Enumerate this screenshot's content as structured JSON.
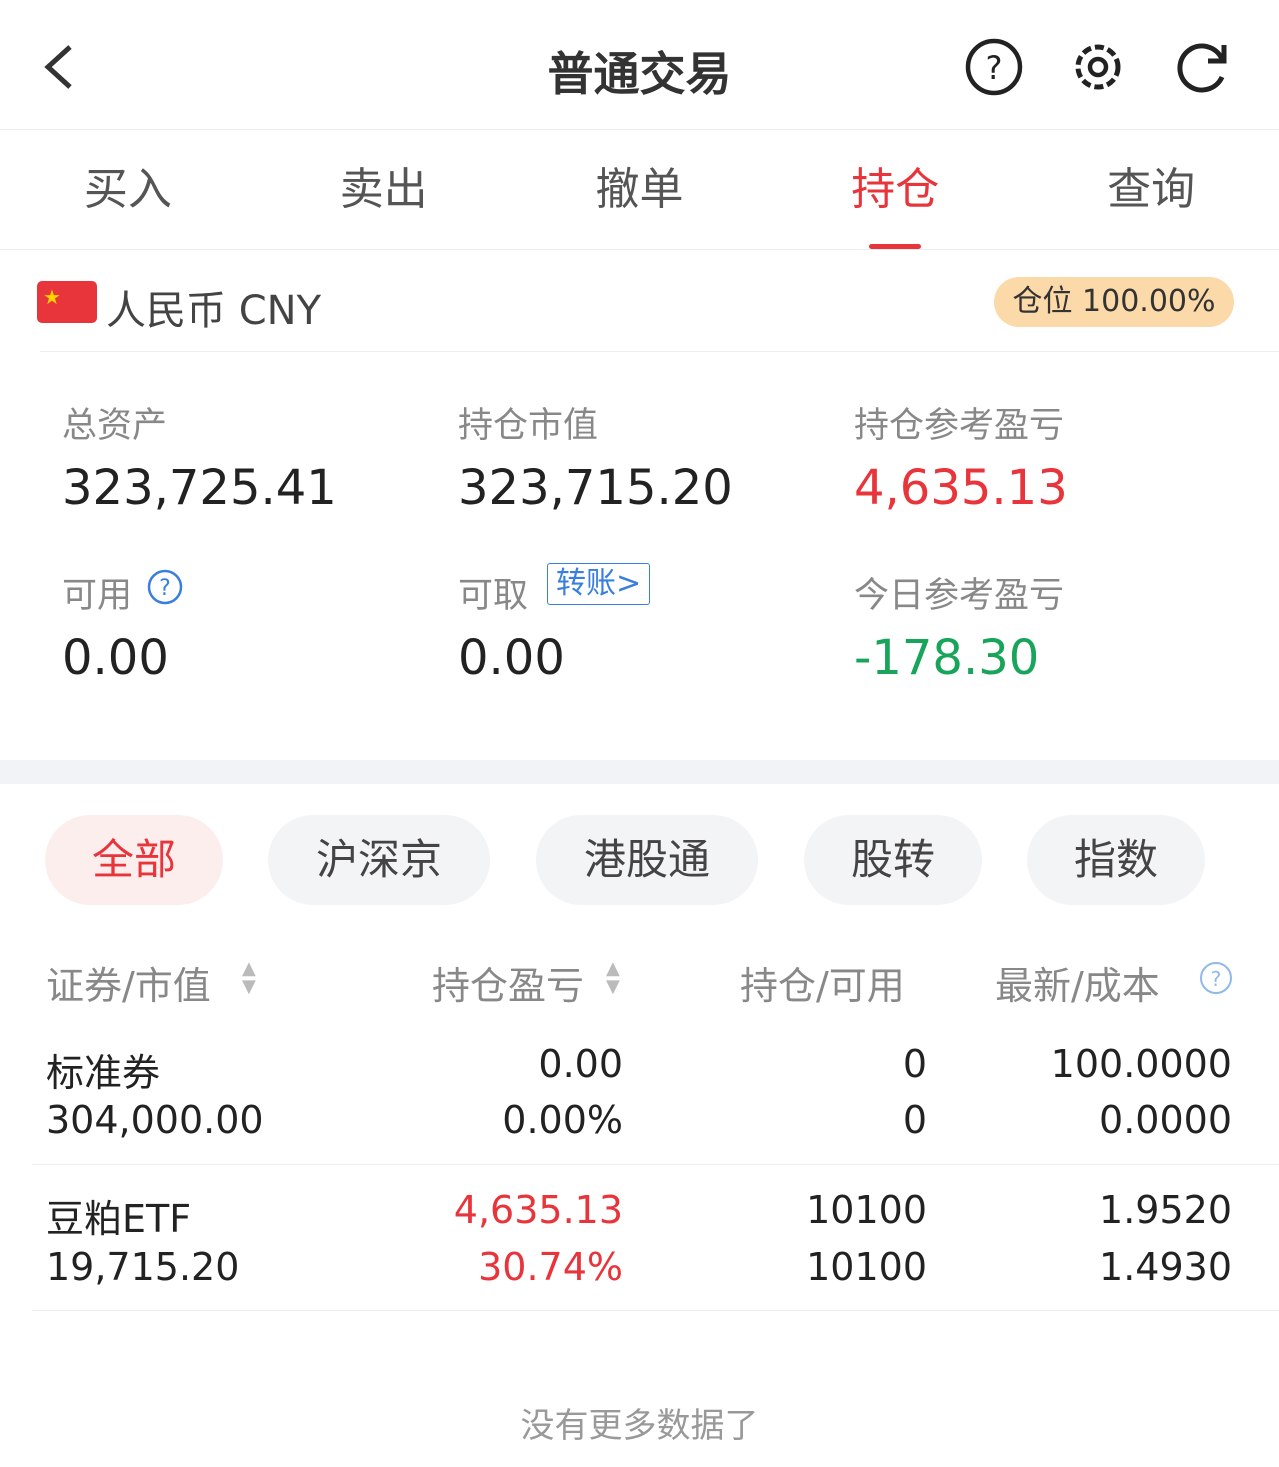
{
  "header": {
    "title": "普通交易",
    "icons": [
      "back-icon",
      "help-icon",
      "gear-icon",
      "refresh-icon"
    ]
  },
  "tabs": [
    "买入",
    "卖出",
    "撤单",
    "持仓",
    "查询"
  ],
  "active_tab": "持仓",
  "currency": {
    "label": "人民币 CNY",
    "position_badge": "仓位 100.00%"
  },
  "summary": {
    "total_assets_label": "总资产",
    "total_assets": "323,725.41",
    "market_value_label": "持仓市值",
    "market_value": "323,715.20",
    "pnl_label": "持仓参考盈亏",
    "pnl": "4,635.13",
    "available_label": "可用",
    "available": "0.00",
    "withdrawable_label": "可取",
    "transfer_label": "转账>",
    "withdrawable": "0.00",
    "today_pnl_label": "今日参考盈亏",
    "today_pnl": "-178.30"
  },
  "filters": [
    "全部",
    "沪深京",
    "港股通",
    "股转",
    "指数"
  ],
  "table": {
    "headers": [
      "证券/市值",
      "持仓盈亏",
      "持仓/可用",
      "最新/成本"
    ],
    "rows": [
      {
        "name": "标准券",
        "value": "304,000.00",
        "pnl": "0.00",
        "pnl_pct": "0.00%",
        "hold": "0",
        "avail": "0",
        "latest": "100.0000",
        "cost": "0.0000"
      },
      {
        "name": "豆粕ETF",
        "value": "19,715.20",
        "pnl": "4,635.13",
        "pnl_pct": "30.74%",
        "hold": "10100",
        "avail": "10100",
        "latest": "1.9520",
        "cost": "1.4930"
      }
    ]
  },
  "footer": "没有更多数据了",
  "colors": {
    "accent": "#e8343b",
    "loss": "#18a55a",
    "badge": "#fbd9a8",
    "link": "#3a7fe0"
  }
}
